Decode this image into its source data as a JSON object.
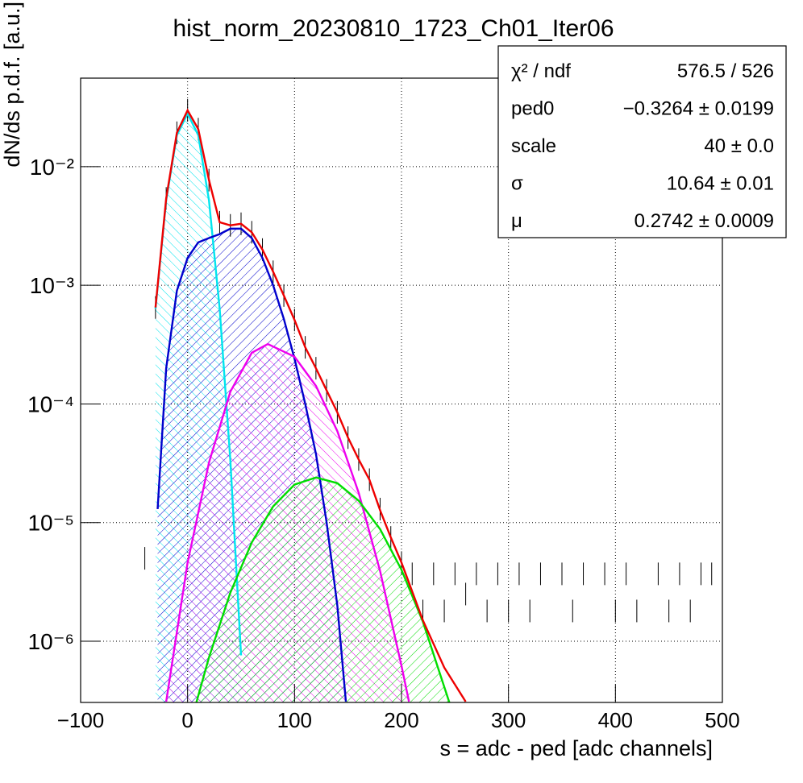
{
  "chart_data": {
    "type": "line",
    "title": "hist_norm_20230810_1723_Ch01_Iter06",
    "x_label": "s = adc - ped [adc channels]",
    "y_label": "dN/ds p.d.f. [a.u.]",
    "xlim": [
      -100,
      500
    ],
    "ylim": [
      3.05e-07,
      0.0557
    ],
    "log_y": true,
    "grid": true,
    "xticks": [
      {
        "value": -100,
        "label": "−100"
      },
      0,
      100,
      200,
      300,
      400,
      500
    ],
    "yticks": [
      {
        "value": 0.01,
        "label": "10⁻²"
      },
      {
        "value": 0.001,
        "label": "10⁻³"
      },
      {
        "value": 0.0001,
        "label": "10⁻⁴"
      },
      {
        "value": 1e-05,
        "label": "10⁻⁵"
      },
      {
        "value": 1e-06,
        "label": "10⁻⁶"
      }
    ],
    "stats": [
      {
        "name": "χ² / ndf",
        "value": "576.5 / 526"
      },
      {
        "name": "ped0",
        "value": "−0.3264 ± 0.0199"
      },
      {
        "name": "scale",
        "value": "40 ± 0.0"
      },
      {
        "name": "σ",
        "value": "10.64 ± 0.01"
      },
      {
        "name": "μ",
        "value": "0.2742 ± 0.0009"
      }
    ],
    "histogram": {
      "color": "#000000",
      "x": [
        -40,
        -30,
        -20,
        -10,
        0,
        10,
        20,
        30,
        40,
        50,
        60,
        70,
        80,
        90,
        100,
        110,
        120,
        130,
        140,
        150,
        160,
        170,
        180,
        190,
        200,
        210,
        220,
        230,
        240,
        250,
        260,
        270,
        280,
        290,
        300,
        310,
        320,
        330,
        340,
        350,
        360,
        370,
        380,
        390,
        400,
        410,
        420,
        430,
        440,
        450,
        460,
        470,
        480,
        490
      ],
      "values": [
        5e-06,
        0.00065,
        0.0054,
        0.0193,
        0.0298,
        0.0207,
        0.0077,
        0.0034,
        0.0032,
        0.0033,
        0.0028,
        0.002,
        0.0013,
        0.00082,
        0.00051,
        0.0003,
        0.0002,
        0.00013,
        8.5e-05,
        5.2e-05,
        3.4e-05,
        2.3e-05,
        1.3e-05,
        7.5e-06,
        4.6e-06,
        3.7e-06,
        1.8e-06,
        3.7e-06,
        1.8e-06,
        3.7e-06,
        2.5e-06,
        3.7e-06,
        1.8e-06,
        3.7e-06,
        1.8e-06,
        3.7e-06,
        1.8e-06,
        3.7e-06,
        null,
        3.7e-06,
        1.8e-06,
        3.7e-06,
        null,
        3.7e-06,
        1.8e-06,
        3.7e-06,
        1.8e-06,
        null,
        3.7e-06,
        1.8e-06,
        3.7e-06,
        1.8e-06,
        3.7e-06,
        3.7e-06
      ]
    },
    "series": [
      {
        "color": "#00e5ee",
        "hatched": true,
        "x": [
          -30,
          -20,
          -10,
          0,
          10,
          20,
          30,
          40,
          50
        ],
        "values": [
          0.000634,
          0.0052,
          0.01838,
          0.028,
          0.01838,
          0.0052,
          0.000634,
          3.33e-05,
          7.6e-07
        ]
      },
      {
        "color": "#0000cc",
        "hatched": true,
        "x": [
          -28,
          -20,
          -10,
          0,
          10,
          20,
          30,
          40,
          50,
          60,
          70,
          80,
          90,
          100,
          110,
          120,
          130,
          140,
          148
        ],
        "values": [
          1.3e-05,
          0.0002,
          0.0009,
          0.0017,
          0.0023,
          0.0025,
          0.0027,
          0.003,
          0.003,
          0.0025,
          0.0017,
          0.001,
          0.00052,
          0.00024,
          0.0001,
          3.8e-05,
          1e-05,
          2e-06,
          3.1e-07
        ]
      },
      {
        "color": "#ee00ee",
        "hatched": true,
        "x": [
          -20,
          0,
          20,
          40,
          60,
          75,
          100,
          120,
          140,
          160,
          180,
          200,
          207
        ],
        "values": [
          3.1e-07,
          4.6e-06,
          3.2e-05,
          0.000127,
          0.00027,
          0.00032,
          0.00025,
          0.000142,
          5.9e-05,
          1.78e-05,
          3.9e-06,
          6.2e-07,
          3.1e-07
        ]
      },
      {
        "color": "#00dd00",
        "hatched": true,
        "x": [
          8,
          20,
          40,
          60,
          80,
          100,
          120,
          140,
          160,
          180,
          200,
          220,
          245
        ],
        "values": [
          3e-07,
          7.3e-07,
          2.57e-06,
          6.8e-06,
          1.37e-05,
          2.09e-05,
          2.4e-05,
          2.15e-05,
          1.53e-05,
          8.8e-06,
          4e-06,
          1.46e-06,
          3e-07
        ]
      },
      {
        "color": "#ee0000",
        "hatched": false,
        "x": [
          -30,
          -20,
          -10,
          0,
          10,
          20,
          30,
          40,
          50,
          60,
          70,
          80,
          90,
          100,
          110,
          120,
          130,
          140,
          150,
          160,
          170,
          180,
          190,
          200,
          220,
          240,
          260
        ],
        "values": [
          0.00065,
          0.0054,
          0.0193,
          0.0298,
          0.0207,
          0.0077,
          0.0034,
          0.0032,
          0.0033,
          0.0028,
          0.002,
          0.0013,
          0.00082,
          0.00051,
          0.0003,
          0.0002,
          0.00013,
          8.5e-05,
          5.2e-05,
          3.4e-05,
          2.3e-05,
          1.27e-05,
          7.5e-06,
          4.6e-06,
          1.5e-06,
          6e-07,
          3.1e-07
        ]
      }
    ]
  }
}
